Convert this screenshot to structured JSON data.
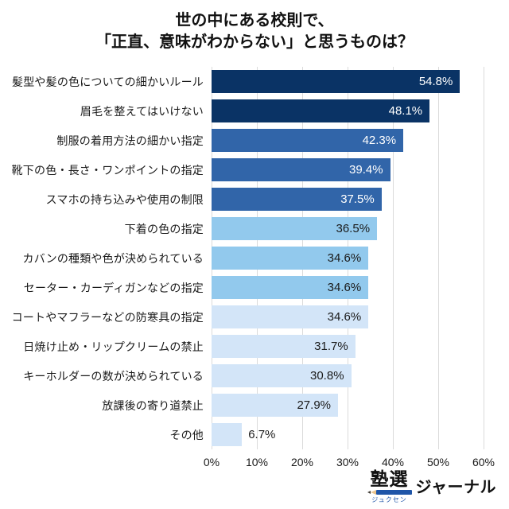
{
  "title": {
    "line1": "世の中にある校則で、",
    "line2": "「正直、意味がわからない」と思うものは？"
  },
  "chart_data": {
    "type": "bar",
    "orientation": "horizontal",
    "title": "世の中にある校則で、「正直、意味がわからない」と思うものは？",
    "xlabel": "",
    "ylabel": "",
    "xlim": [
      0,
      60
    ],
    "x_ticks": [
      "0%",
      "10%",
      "20%",
      "30%",
      "40%",
      "50%",
      "60%"
    ],
    "grid": true,
    "legend": "none",
    "categories": [
      "髪型や髪の色についての細かいルール",
      "眉毛を整えてはいけない",
      "制服の着用方法の細かい指定",
      "靴下の色・長さ・ワンポイントの指定",
      "スマホの持ち込みや使用の制限",
      "下着の色の指定",
      "カバンの種類や色が決められている",
      "セーター・カーディガンなどの指定",
      "コートやマフラーなどの防寒具の指定",
      "日焼け止め・リップクリームの禁止",
      "キーホルダーの数が決められている",
      "放課後の寄り道禁止",
      "その他"
    ],
    "values": [
      54.8,
      48.1,
      42.3,
      39.4,
      37.5,
      36.5,
      34.6,
      34.6,
      34.6,
      31.7,
      30.8,
      27.9,
      6.7
    ],
    "rows": [
      {
        "label": "髪型や髪の色についての細かいルール",
        "value": 54.8,
        "display": "54.8%",
        "bar_color": "#0a3365",
        "value_color": "#ffffff",
        "label_outside": false
      },
      {
        "label": "眉毛を整えてはいけない",
        "value": 48.1,
        "display": "48.1%",
        "bar_color": "#0a3365",
        "value_color": "#ffffff",
        "label_outside": false
      },
      {
        "label": "制服の着用方法の細かい指定",
        "value": 42.3,
        "display": "42.3%",
        "bar_color": "#3165a9",
        "value_color": "#ffffff",
        "label_outside": false
      },
      {
        "label": "靴下の色・長さ・ワンポイントの指定",
        "value": 39.4,
        "display": "39.4%",
        "bar_color": "#3165a9",
        "value_color": "#ffffff",
        "label_outside": false
      },
      {
        "label": "スマホの持ち込みや使用の制限",
        "value": 37.5,
        "display": "37.5%",
        "bar_color": "#3165a9",
        "value_color": "#ffffff",
        "label_outside": false
      },
      {
        "label": "下着の色の指定",
        "value": 36.5,
        "display": "36.5%",
        "bar_color": "#92c9ed",
        "value_color": "#1a1a1a",
        "label_outside": false
      },
      {
        "label": "カバンの種類や色が決められている",
        "value": 34.6,
        "display": "34.6%",
        "bar_color": "#92c9ed",
        "value_color": "#1a1a1a",
        "label_outside": false
      },
      {
        "label": "セーター・カーディガンなどの指定",
        "value": 34.6,
        "display": "34.6%",
        "bar_color": "#92c9ed",
        "value_color": "#1a1a1a",
        "label_outside": false
      },
      {
        "label": "コートやマフラーなどの防寒具の指定",
        "value": 34.6,
        "display": "34.6%",
        "bar_color": "#d3e5f8",
        "value_color": "#1a1a1a",
        "label_outside": false
      },
      {
        "label": "日焼け止め・リップクリームの禁止",
        "value": 31.7,
        "display": "31.7%",
        "bar_color": "#d3e5f8",
        "value_color": "#1a1a1a",
        "label_outside": false
      },
      {
        "label": "キーホルダーの数が決められている",
        "value": 30.8,
        "display": "30.8%",
        "bar_color": "#d3e5f8",
        "value_color": "#1a1a1a",
        "label_outside": false
      },
      {
        "label": "放課後の寄り道禁止",
        "value": 27.9,
        "display": "27.9%",
        "bar_color": "#d3e5f8",
        "value_color": "#1a1a1a",
        "label_outside": false
      },
      {
        "label": "その他",
        "value": 6.7,
        "display": "6.7%",
        "bar_color": "#d3e5f8",
        "value_color": "#1a1a1a",
        "label_outside": true
      }
    ]
  },
  "colors": {
    "bar_navy": "#0a3365",
    "bar_medium_blue": "#3165a9",
    "bar_sky_blue": "#92c9ed",
    "bar_pale_blue": "#d3e5f8",
    "gridline": "#dbdbdb",
    "logo_blue": "#1f55a8"
  },
  "footer": {
    "logo_main": "塾選",
    "logo_furigana": "ジュクセン",
    "logo_sub": "ジャーナル"
  }
}
